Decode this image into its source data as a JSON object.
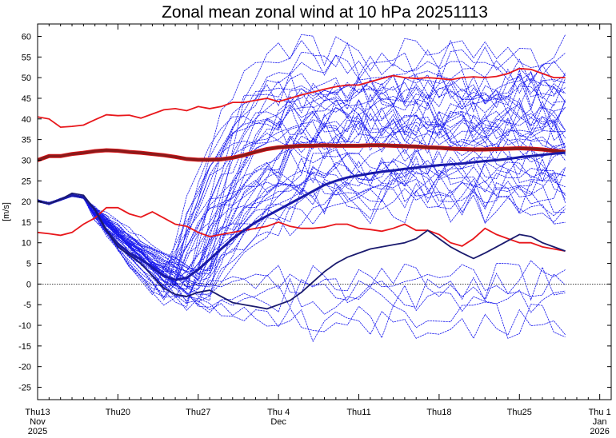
{
  "chart_data": {
    "type": "line",
    "title": "Zonal mean zonal wind at 10 hPa 20251113",
    "ylabel": "[m/s]",
    "xlabel": "",
    "ylim": [
      -28,
      63
    ],
    "y_ticks": [
      -25,
      -20,
      -15,
      -10,
      -5,
      0,
      5,
      10,
      15,
      20,
      25,
      30,
      35,
      40,
      45,
      50,
      55,
      60
    ],
    "x_domain_days": [
      0,
      50
    ],
    "x_ticks": [
      {
        "day": 0,
        "lines": [
          "Thu13",
          "Nov",
          "2025"
        ]
      },
      {
        "day": 7,
        "lines": [
          "Thu20"
        ]
      },
      {
        "day": 14,
        "lines": [
          "Thu27"
        ]
      },
      {
        "day": 21,
        "lines": [
          "Thu 4",
          "Dec"
        ]
      },
      {
        "day": 28,
        "lines": [
          "Thu11"
        ]
      },
      {
        "day": 35,
        "lines": [
          "Thu18"
        ]
      },
      {
        "day": 42,
        "lines": [
          "Thu25"
        ]
      },
      {
        "day": 49,
        "lines": [
          "Thu 1",
          "Jan",
          "2026"
        ]
      }
    ],
    "zero_line": 0,
    "series": [
      {
        "name": "climatology max",
        "role": "climatology",
        "color": "#e8171b",
        "x": [
          0,
          1,
          2,
          3,
          4,
          5,
          6,
          7,
          8,
          9,
          10,
          11,
          12,
          13,
          14,
          15,
          16,
          17,
          18,
          19,
          20,
          21,
          22,
          23,
          24,
          25,
          26,
          27,
          28,
          29,
          30,
          31,
          32,
          33,
          34,
          35,
          36,
          37,
          38,
          39,
          40,
          41,
          42,
          43,
          44,
          45,
          46
        ],
        "y": [
          40.5,
          40,
          38,
          38.2,
          38.5,
          39.8,
          41,
          40.8,
          40.9,
          40.2,
          41.2,
          42.2,
          42.5,
          42,
          43,
          42.5,
          43,
          44,
          44,
          44.5,
          45,
          44.2,
          45,
          45.8,
          46.5,
          47.2,
          47.8,
          48.2,
          48.2,
          49,
          49.8,
          50.5,
          50,
          49.8,
          50,
          49.8,
          49.5,
          50,
          50.2,
          50,
          50.3,
          51,
          52.2,
          52,
          51,
          50,
          50
        ]
      },
      {
        "name": "climatology min",
        "role": "climatology",
        "color": "#e8171b",
        "x": [
          0,
          1,
          2,
          3,
          4,
          5,
          6,
          7,
          8,
          9,
          10,
          11,
          12,
          13,
          14,
          15,
          16,
          17,
          18,
          19,
          20,
          21,
          22,
          23,
          24,
          25,
          26,
          27,
          28,
          29,
          30,
          31,
          32,
          33,
          34,
          35,
          36,
          37,
          38,
          39,
          40,
          41,
          42,
          43,
          44,
          45,
          46
        ],
        "y": [
          12.5,
          12.2,
          11.8,
          12.5,
          14.5,
          16,
          18.5,
          18.5,
          17,
          16.2,
          17.5,
          16,
          14.5,
          14,
          12.5,
          11.5,
          12,
          12.5,
          13,
          13.5,
          14,
          15,
          14,
          13.5,
          13.5,
          13.8,
          14.5,
          14.5,
          13.5,
          13.2,
          12.8,
          13.5,
          14.5,
          13,
          13,
          12,
          10,
          9.2,
          11,
          13.5,
          12,
          11,
          10,
          10,
          9,
          8.5,
          8
        ]
      },
      {
        "name": "climatology mean",
        "role": "climatology-mean",
        "color": "#8b1a1a",
        "x": [
          0,
          1,
          2,
          3,
          4,
          5,
          6,
          7,
          8,
          9,
          10,
          11,
          12,
          13,
          14,
          15,
          16,
          17,
          18,
          19,
          20,
          21,
          22,
          23,
          24,
          25,
          26,
          27,
          28,
          29,
          30,
          31,
          32,
          33,
          34,
          35,
          36,
          37,
          38,
          39,
          40,
          41,
          42,
          43,
          44,
          45,
          46
        ],
        "y": [
          30,
          31,
          31,
          31.5,
          31.8,
          32.2,
          32.4,
          32.3,
          32,
          31.8,
          31.5,
          31.2,
          30.8,
          30.3,
          30.1,
          30.1,
          30.2,
          30.6,
          31.2,
          32,
          32.7,
          33.1,
          33.3,
          33.5,
          33.5,
          33.6,
          33.5,
          33.5,
          33.5,
          33.6,
          33.6,
          33.5,
          33.4,
          33.3,
          33.1,
          33,
          32.8,
          32.7,
          32.6,
          32.6,
          32.7,
          32.8,
          32.9,
          32.8,
          32.6,
          32.3,
          32
        ]
      },
      {
        "name": "ensemble mean",
        "role": "ensemble-mean",
        "color": "#1a1aa8",
        "x": [
          0,
          1,
          2,
          3,
          4,
          5,
          6,
          7,
          8,
          9,
          10,
          11,
          12,
          13,
          14,
          15,
          16,
          17,
          18,
          19,
          20,
          21,
          22,
          23,
          24,
          25,
          26,
          27,
          28,
          29,
          30,
          31,
          32,
          33,
          34,
          35,
          36,
          37,
          38,
          39,
          40,
          41,
          42,
          43,
          44,
          45,
          46
        ],
        "y": [
          20.2,
          19.5,
          20.5,
          21.5,
          21,
          18,
          13,
          9.8,
          7.5,
          6,
          4,
          2,
          1,
          1.5,
          3.5,
          6,
          8.5,
          11,
          13,
          15,
          16.5,
          18,
          19.5,
          21,
          22.5,
          24,
          25,
          25.8,
          26.3,
          26.8,
          27.2,
          27.5,
          27.9,
          28.2,
          28.5,
          28.8,
          29,
          29.2,
          29.5,
          29.8,
          30,
          30.3,
          30.7,
          31,
          31.3,
          31.6,
          31.8
        ]
      },
      {
        "name": "control run",
        "role": "control",
        "color": "#1a1a6e",
        "x": [
          0,
          1,
          2,
          3,
          4,
          5,
          6,
          7,
          8,
          9,
          10,
          11,
          12,
          13,
          14,
          15,
          16,
          17,
          18,
          19,
          20,
          21,
          22,
          23,
          24,
          25,
          26,
          27,
          28,
          29,
          30,
          31,
          32,
          33,
          34,
          35,
          36,
          37,
          38,
          39,
          40,
          41,
          42,
          43,
          44,
          45,
          46
        ],
        "y": [
          20,
          19.5,
          20.5,
          22,
          21.5,
          18,
          13,
          9,
          7,
          5,
          2,
          -1,
          -2.5,
          -3,
          -2,
          -1.5,
          -3,
          -4.5,
          -5,
          -5.5,
          -6,
          -5,
          -4,
          -2,
          0.5,
          3,
          5,
          6.5,
          7.5,
          8.5,
          9,
          9.5,
          10,
          11,
          13,
          11,
          9,
          7.5,
          6.2,
          7.5,
          9,
          10.5,
          12,
          11.5,
          10,
          9,
          8
        ]
      }
    ],
    "ensemble": {
      "role": "ensemble-members",
      "color": "#1818ee",
      "member_count": 50,
      "start_day": 0,
      "end_day": 46,
      "initial_value": 20.2,
      "dip_day": 12.5,
      "dip_min": -6.5,
      "dip_max": 3,
      "final_min": -10.5,
      "final_max": 58.5,
      "final_center": 30,
      "seed": 1113
    }
  }
}
